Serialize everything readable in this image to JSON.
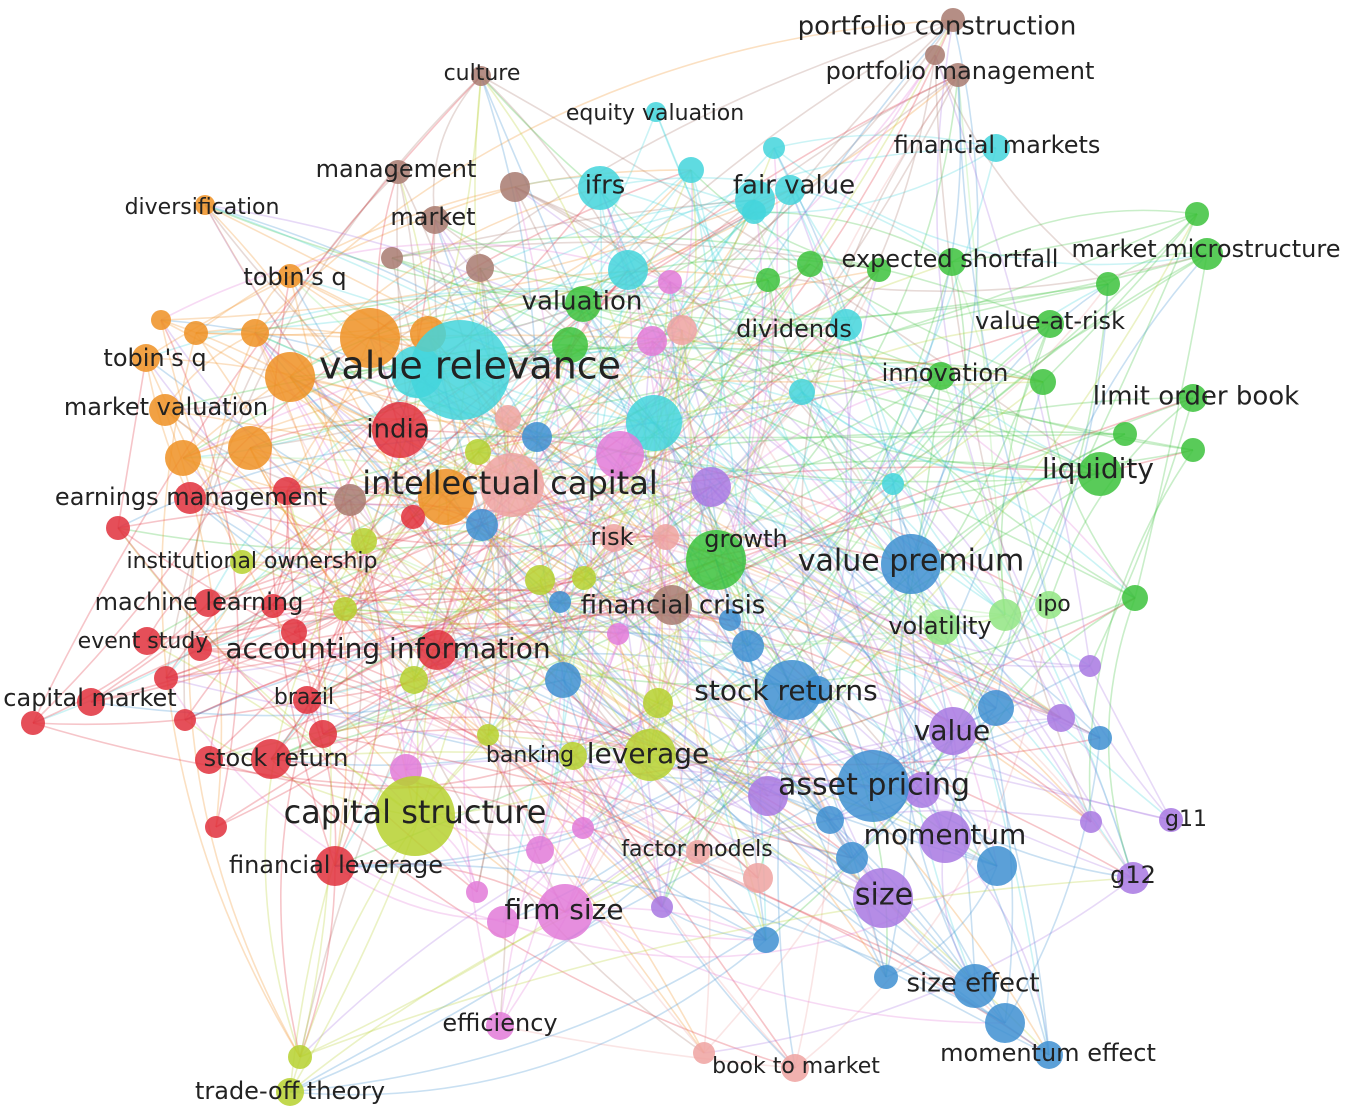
{
  "colors": {
    "red": "#e0303c",
    "orange": "#ef9023",
    "cyan": "#43d5dc",
    "green": "#3cc23c",
    "lightgreen": "#92e583",
    "blue": "#3e8fd1",
    "purple": "#a878e2",
    "pink": "#e27ad8",
    "yellowgreen": "#b6d12f",
    "brown": "#a87a70",
    "salmon": "#eea3a1"
  },
  "terms": [
    {
      "label": "portfolio construction",
      "cluster": "brown",
      "weight": 1
    },
    {
      "label": "portfolio management",
      "cluster": "brown",
      "weight": 1
    },
    {
      "label": "culture",
      "cluster": "brown",
      "weight": 1
    },
    {
      "label": "equity valuation",
      "cluster": "cyan",
      "weight": 1
    },
    {
      "label": "financial markets",
      "cluster": "cyan",
      "weight": 2
    },
    {
      "label": "management",
      "cluster": "brown",
      "weight": 1
    },
    {
      "label": "ifrs",
      "cluster": "cyan",
      "weight": 3
    },
    {
      "label": "fair value",
      "cluster": "cyan",
      "weight": 3
    },
    {
      "label": "diversification",
      "cluster": "orange",
      "weight": 1
    },
    {
      "label": "market",
      "cluster": "brown",
      "weight": 1
    },
    {
      "label": "expected shortfall",
      "cluster": "green",
      "weight": 2
    },
    {
      "label": "market microstructure",
      "cluster": "green",
      "weight": 2
    },
    {
      "label": "tobin's q",
      "cluster": "orange",
      "weight": 1
    },
    {
      "label": "valuation",
      "cluster": "green",
      "weight": 3
    },
    {
      "label": "dividends",
      "cluster": "cyan",
      "weight": 2
    },
    {
      "label": "value-at-risk",
      "cluster": "green",
      "weight": 2
    },
    {
      "label": "tobin's q",
      "cluster": "orange",
      "weight": 1
    },
    {
      "label": "value relevance",
      "cluster": "cyan",
      "weight": 9
    },
    {
      "label": "innovation",
      "cluster": "green",
      "weight": 2
    },
    {
      "label": "limit order book",
      "cluster": "green",
      "weight": 3
    },
    {
      "label": "market valuation",
      "cluster": "orange",
      "weight": 2
    },
    {
      "label": "india",
      "cluster": "red",
      "weight": 4
    },
    {
      "label": "intellectual capital",
      "cluster": "salmon",
      "weight": 6
    },
    {
      "label": "liquidity",
      "cluster": "green",
      "weight": 4
    },
    {
      "label": "earnings management",
      "cluster": "red",
      "weight": 2
    },
    {
      "label": "risk",
      "cluster": "salmon",
      "weight": 2
    },
    {
      "label": "growth",
      "cluster": "green",
      "weight": 5
    },
    {
      "label": "value premium",
      "cluster": "blue",
      "weight": 6
    },
    {
      "label": "institutional ownership",
      "cluster": "yellowgreen",
      "weight": 2
    },
    {
      "label": "financial crisis",
      "cluster": "brown",
      "weight": 3
    },
    {
      "label": "machine learning",
      "cluster": "red",
      "weight": 2
    },
    {
      "label": "ipo",
      "cluster": "lightgreen",
      "weight": 2
    },
    {
      "label": "volatility",
      "cluster": "lightgreen",
      "weight": 2
    },
    {
      "label": "event study",
      "cluster": "red",
      "weight": 2
    },
    {
      "label": "accounting information",
      "cluster": "red",
      "weight": 4
    },
    {
      "label": "capital market",
      "cluster": "red",
      "weight": 2
    },
    {
      "label": "brazil",
      "cluster": "red",
      "weight": 2
    },
    {
      "label": "stock returns",
      "cluster": "blue",
      "weight": 5
    },
    {
      "label": "value",
      "cluster": "purple",
      "weight": 4
    },
    {
      "label": "banking",
      "cluster": "yellowgreen",
      "weight": 2
    },
    {
      "label": "leverage",
      "cluster": "yellowgreen",
      "weight": 4
    },
    {
      "label": "stock return",
      "cluster": "red",
      "weight": 3
    },
    {
      "label": "asset pricing",
      "cluster": "blue",
      "weight": 6
    },
    {
      "label": "capital structure",
      "cluster": "yellowgreen",
      "weight": 7
    },
    {
      "label": "g11",
      "cluster": "purple",
      "weight": 1
    },
    {
      "label": "momentum",
      "cluster": "purple",
      "weight": 5
    },
    {
      "label": "factor models",
      "cluster": "salmon",
      "weight": 2
    },
    {
      "label": "financial leverage",
      "cluster": "red",
      "weight": 2
    },
    {
      "label": "g12",
      "cluster": "purple",
      "weight": 2
    },
    {
      "label": "size",
      "cluster": "purple",
      "weight": 5
    },
    {
      "label": "firm size",
      "cluster": "pink",
      "weight": 4
    },
    {
      "label": "size effect",
      "cluster": "blue",
      "weight": 4
    },
    {
      "label": "efficiency",
      "cluster": "pink",
      "weight": 1
    },
    {
      "label": "momentum effect",
      "cluster": "blue",
      "weight": 3
    },
    {
      "label": "book to market",
      "cluster": "salmon",
      "weight": 1
    },
    {
      "label": "trade-off theory",
      "cluster": "yellowgreen",
      "weight": 2
    }
  ]
}
